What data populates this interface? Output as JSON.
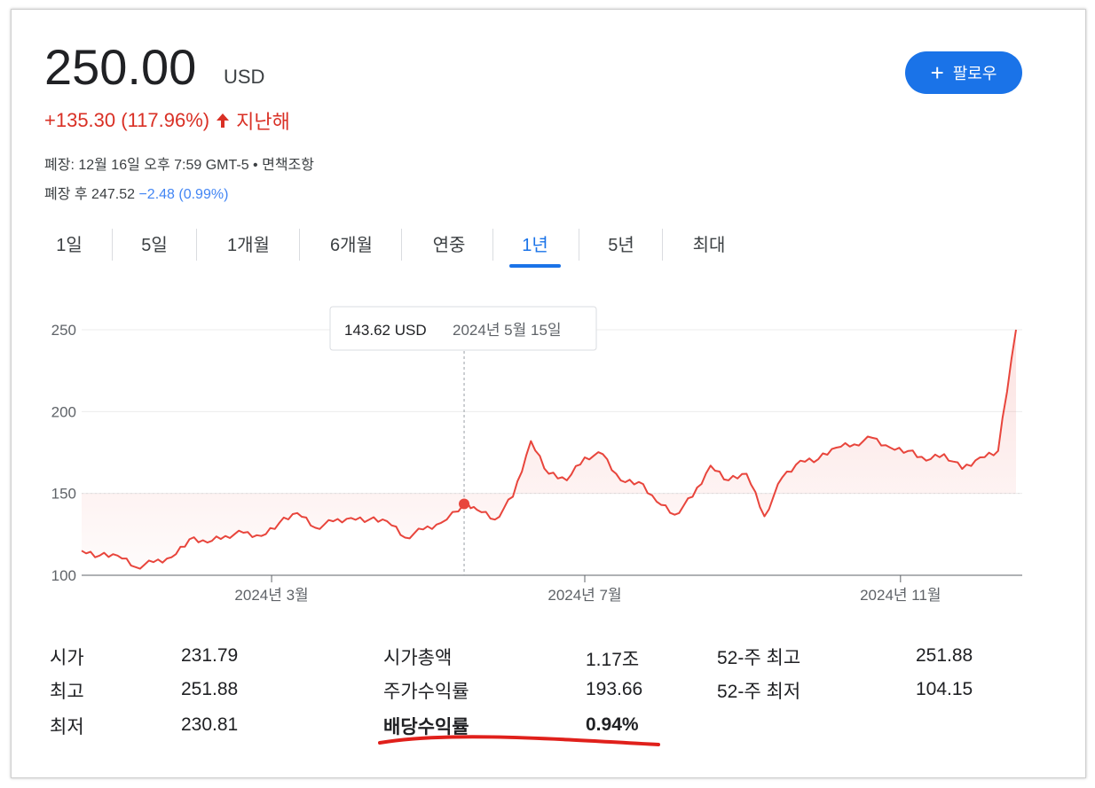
{
  "header": {
    "price": "250.00",
    "currency": "USD",
    "change": "+135.30 (117.96%)",
    "period": "지난해",
    "change_color": "#d93025",
    "arrow_icon": "arrow-up-icon"
  },
  "meta": {
    "close_info": "폐장: 12월 16일 오후 7:59 GMT-5 • 면책조항",
    "after_hours_label": "폐장 후 247.52",
    "after_hours_change": "−2.48 (0.99%)"
  },
  "follow_button": {
    "icon": "+",
    "label": "팔로우",
    "color": "#1a73e8"
  },
  "tabs": [
    {
      "label": "1일",
      "active": false
    },
    {
      "label": "5일",
      "active": false
    },
    {
      "label": "1개월",
      "active": false
    },
    {
      "label": "6개월",
      "active": false
    },
    {
      "label": "연중",
      "active": false
    },
    {
      "label": "1년",
      "active": true
    },
    {
      "label": "5년",
      "active": false
    },
    {
      "label": "최대",
      "active": false
    }
  ],
  "tooltip": {
    "value": "143.62 USD",
    "date": "2024년 5월 15일"
  },
  "chart_data": {
    "type": "line",
    "title": "",
    "xlabel": "",
    "ylabel": "",
    "ylim": [
      100,
      250
    ],
    "yticks": [
      "250",
      "200",
      "150",
      "100"
    ],
    "xtick_labels": [
      "2024년 3월",
      "2024년 7월",
      "2024년 11월"
    ],
    "line_color": "#e8453c",
    "reference_value": 150,
    "grid": true,
    "series": [
      {
        "x": [
          "2023-12-18",
          "2023-12-25",
          "2024-01-01",
          "2024-01-08",
          "2024-01-15",
          "2024-01-22",
          "2024-01-29",
          "2024-02-05",
          "2024-02-12",
          "2024-02-19",
          "2024-02-26",
          "2024-03-04",
          "2024-03-11",
          "2024-03-18",
          "2024-03-25",
          "2024-04-01",
          "2024-04-08",
          "2024-04-15",
          "2024-04-22",
          "2024-04-29",
          "2024-05-06",
          "2024-05-15",
          "2024-05-20",
          "2024-05-27",
          "2024-06-03",
          "2024-06-10",
          "2024-06-17",
          "2024-06-24",
          "2024-07-01",
          "2024-07-08",
          "2024-07-15",
          "2024-07-22",
          "2024-07-29",
          "2024-08-05",
          "2024-08-12",
          "2024-08-19",
          "2024-08-26",
          "2024-09-02",
          "2024-09-09",
          "2024-09-16",
          "2024-09-23",
          "2024-09-30",
          "2024-10-07",
          "2024-10-14",
          "2024-10-21",
          "2024-10-28",
          "2024-11-04",
          "2024-11-11",
          "2024-11-18",
          "2024-11-25",
          "2024-12-02",
          "2024-12-09",
          "2024-12-16"
        ],
        "values": [
          115,
          112,
          112,
          105,
          108,
          111,
          122,
          120,
          124,
          126,
          124,
          132,
          138,
          129,
          133,
          135,
          134,
          133,
          123,
          128,
          132,
          143.62,
          140,
          134,
          148,
          182,
          162,
          158,
          172,
          174,
          158,
          157,
          145,
          137,
          148,
          167,
          158,
          162,
          136,
          160,
          170,
          171,
          178,
          180,
          184,
          178,
          176,
          170,
          174,
          165,
          172,
          176,
          250
        ]
      }
    ]
  },
  "stats": {
    "col1": [
      {
        "label": "시가",
        "value": "231.79"
      },
      {
        "label": "최고",
        "value": "251.88"
      },
      {
        "label": "최저",
        "value": "230.81"
      }
    ],
    "col2": [
      {
        "label": "시가총액",
        "value": "1.17조"
      },
      {
        "label": "주가수익률",
        "value": "193.66"
      },
      {
        "label": "배당수익률",
        "value": "0.94%"
      }
    ],
    "col3": [
      {
        "label": "52-주 최고",
        "value": "251.88"
      },
      {
        "label": "52-주 최저",
        "value": "104.15"
      }
    ],
    "highlight_color": "#e0201b"
  }
}
